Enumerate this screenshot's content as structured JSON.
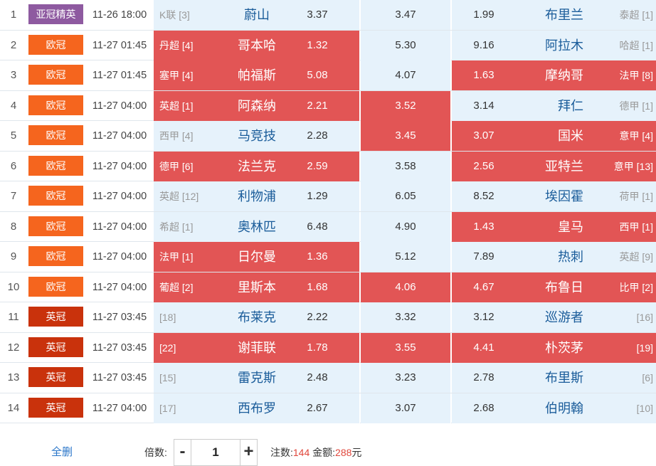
{
  "colors": {
    "asia_elite": "#8e5aa0",
    "champions": "#f5651e",
    "championship": "#c9320c",
    "selected": "#e25555",
    "cell_bg": "#e6f2fb",
    "team": "#1a5c9a"
  },
  "rows": [
    {
      "idx": "1",
      "league": "亚冠精英",
      "league_color": "#8e5aa0",
      "time": "11-26 18:00",
      "home_rank": "K联 [3]",
      "home_rank_dark": false,
      "home": "蔚山",
      "home_odd": "3.37",
      "draw": "3.47",
      "away_odd": "1.99",
      "away": "布里兰",
      "away_rank": "泰超 [1]",
      "away_rank_dark": false,
      "sel_home": false,
      "sel_draw": false,
      "sel_away": false
    },
    {
      "idx": "2",
      "league": "欧冠",
      "league_color": "#f5651e",
      "time": "11-27 01:45",
      "home_rank": "丹超 [4]",
      "home_rank_dark": true,
      "home": "哥本哈",
      "home_odd": "1.32",
      "draw": "5.30",
      "away_odd": "9.16",
      "away": "阿拉木",
      "away_rank": "哈超 [1]",
      "away_rank_dark": false,
      "sel_home": true,
      "sel_draw": false,
      "sel_away": false
    },
    {
      "idx": "3",
      "league": "欧冠",
      "league_color": "#f5651e",
      "time": "11-27 01:45",
      "home_rank": "塞甲 [4]",
      "home_rank_dark": true,
      "home": "帕福斯",
      "home_odd": "5.08",
      "draw": "4.07",
      "away_odd": "1.63",
      "away": "摩纳哥",
      "away_rank": "法甲 [8]",
      "away_rank_dark": true,
      "sel_home": true,
      "sel_draw": false,
      "sel_away": true
    },
    {
      "idx": "4",
      "league": "欧冠",
      "league_color": "#f5651e",
      "time": "11-27 04:00",
      "home_rank": "英超 [1]",
      "home_rank_dark": true,
      "home": "阿森纳",
      "home_odd": "2.21",
      "draw": "3.52",
      "away_odd": "3.14",
      "away": "拜仁",
      "away_rank": "德甲 [1]",
      "away_rank_dark": false,
      "sel_home": true,
      "sel_draw": true,
      "sel_away": false
    },
    {
      "idx": "5",
      "league": "欧冠",
      "league_color": "#f5651e",
      "time": "11-27 04:00",
      "home_rank": "西甲 [4]",
      "home_rank_dark": false,
      "home": "马竞技",
      "home_odd": "2.28",
      "draw": "3.45",
      "away_odd": "3.07",
      "away": "国米",
      "away_rank": "意甲 [4]",
      "away_rank_dark": true,
      "sel_home": false,
      "sel_draw": true,
      "sel_away": true
    },
    {
      "idx": "6",
      "league": "欧冠",
      "league_color": "#f5651e",
      "time": "11-27 04:00",
      "home_rank": "德甲 [6]",
      "home_rank_dark": true,
      "home": "法兰克",
      "home_odd": "2.59",
      "draw": "3.58",
      "away_odd": "2.56",
      "away": "亚特兰",
      "away_rank": "意甲 [13]",
      "away_rank_dark": true,
      "sel_home": true,
      "sel_draw": false,
      "sel_away": true
    },
    {
      "idx": "7",
      "league": "欧冠",
      "league_color": "#f5651e",
      "time": "11-27 04:00",
      "home_rank": "英超 [12]",
      "home_rank_dark": false,
      "home": "利物浦",
      "home_odd": "1.29",
      "draw": "6.05",
      "away_odd": "8.52",
      "away": "埃因霍",
      "away_rank": "荷甲 [1]",
      "away_rank_dark": false,
      "sel_home": false,
      "sel_draw": false,
      "sel_away": false
    },
    {
      "idx": "8",
      "league": "欧冠",
      "league_color": "#f5651e",
      "time": "11-27 04:00",
      "home_rank": "希超 [1]",
      "home_rank_dark": false,
      "home": "奥林匹",
      "home_odd": "6.48",
      "draw": "4.90",
      "away_odd": "1.43",
      "away": "皇马",
      "away_rank": "西甲 [1]",
      "away_rank_dark": true,
      "sel_home": false,
      "sel_draw": false,
      "sel_away": true
    },
    {
      "idx": "9",
      "league": "欧冠",
      "league_color": "#f5651e",
      "time": "11-27 04:00",
      "home_rank": "法甲 [1]",
      "home_rank_dark": true,
      "home": "日尔曼",
      "home_odd": "1.36",
      "draw": "5.12",
      "away_odd": "7.89",
      "away": "热刺",
      "away_rank": "英超 [9]",
      "away_rank_dark": false,
      "sel_home": true,
      "sel_draw": false,
      "sel_away": false
    },
    {
      "idx": "10",
      "league": "欧冠",
      "league_color": "#f5651e",
      "time": "11-27 04:00",
      "home_rank": "葡超 [2]",
      "home_rank_dark": true,
      "home": "里斯本",
      "home_odd": "1.68",
      "draw": "4.06",
      "away_odd": "4.67",
      "away": "布鲁日",
      "away_rank": "比甲 [2]",
      "away_rank_dark": true,
      "sel_home": true,
      "sel_draw": true,
      "sel_away": true
    },
    {
      "idx": "11",
      "league": "英冠",
      "league_color": "#c9320c",
      "time": "11-27 03:45",
      "home_rank": "[18]",
      "home_rank_dark": false,
      "home": "布莱克",
      "home_odd": "2.22",
      "draw": "3.32",
      "away_odd": "3.12",
      "away": "巡游者",
      "away_rank": "[16]",
      "away_rank_dark": false,
      "sel_home": false,
      "sel_draw": false,
      "sel_away": false
    },
    {
      "idx": "12",
      "league": "英冠",
      "league_color": "#c9320c",
      "time": "11-27 03:45",
      "home_rank": "[22]",
      "home_rank_dark": true,
      "home": "谢菲联",
      "home_odd": "1.78",
      "draw": "3.55",
      "away_odd": "4.41",
      "away": "朴茨茅",
      "away_rank": "[19]",
      "away_rank_dark": true,
      "sel_home": true,
      "sel_draw": true,
      "sel_away": true
    },
    {
      "idx": "13",
      "league": "英冠",
      "league_color": "#c9320c",
      "time": "11-27 03:45",
      "home_rank": "[15]",
      "home_rank_dark": false,
      "home": "雷克斯",
      "home_odd": "2.48",
      "draw": "3.23",
      "away_odd": "2.78",
      "away": "布里斯",
      "away_rank": "[6]",
      "away_rank_dark": false,
      "sel_home": false,
      "sel_draw": false,
      "sel_away": false
    },
    {
      "idx": "14",
      "league": "英冠",
      "league_color": "#c9320c",
      "time": "11-27 04:00",
      "home_rank": "[17]",
      "home_rank_dark": false,
      "home": "西布罗",
      "home_odd": "2.67",
      "draw": "3.07",
      "away_odd": "2.68",
      "away": "伯明翰",
      "away_rank": "[10]",
      "away_rank_dark": false,
      "sel_home": false,
      "sel_draw": false,
      "sel_away": false
    }
  ],
  "footer": {
    "delete_all": "全删",
    "multiplier_label": "倍数:",
    "minus": "-",
    "multiplier_value": "1",
    "plus": "+",
    "bets_label": "注数:",
    "bets_value": "144",
    "amount_label": "金额:",
    "amount_value": "288",
    "amount_unit": "元"
  }
}
